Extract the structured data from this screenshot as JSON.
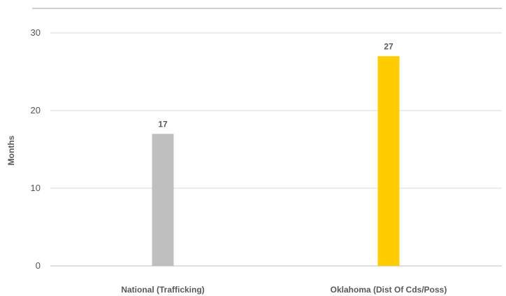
{
  "chart_data": {
    "type": "bar",
    "categories": [
      "National (Trafficking)",
      "Oklahoma (Dist Of Cds/Poss)"
    ],
    "values": [
      17,
      27
    ],
    "bar_colors": [
      "#bfbfbf",
      "#ffcc00"
    ],
    "ylabel": "Months",
    "ylim": [
      0,
      30
    ],
    "yticks": [
      0,
      10,
      20,
      30
    ],
    "grid": true,
    "data_labels": [
      "17",
      "27"
    ]
  }
}
